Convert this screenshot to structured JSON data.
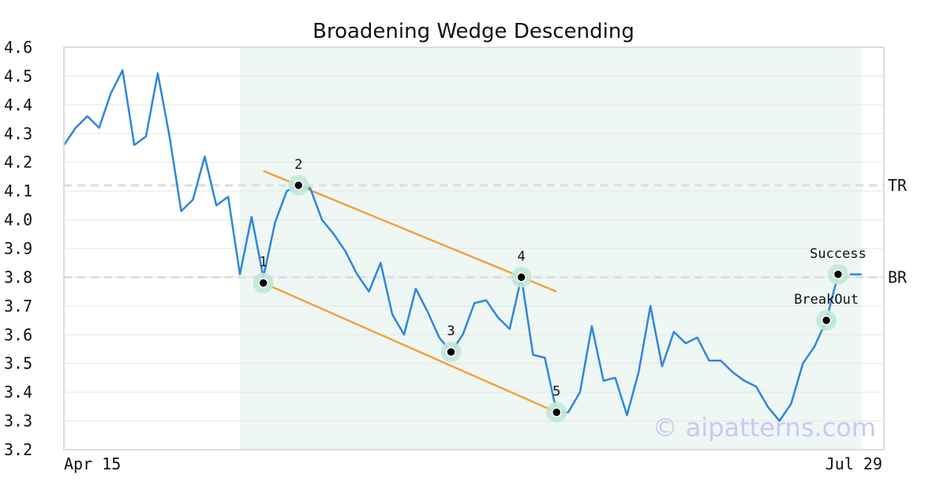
{
  "chart_data": {
    "type": "line",
    "title": "Broadening Wedge Descending",
    "xlabel": "",
    "ylabel": "",
    "x_tick_labels": [
      "Apr 15",
      "Jul 29"
    ],
    "x_range": [
      0,
      66
    ],
    "y_ticks": [
      "3.2",
      "3.3",
      "3.4",
      "3.5",
      "3.6",
      "3.7",
      "3.8",
      "3.9",
      "4.0",
      "4.1",
      "4.2",
      "4.3",
      "4.4",
      "4.5",
      "4.6"
    ],
    "ylim": [
      3.2,
      4.6
    ],
    "grid": true,
    "series": [
      {
        "color": "#2e86de",
        "x": [
          0,
          1,
          2,
          3,
          4,
          5,
          6,
          7,
          8,
          9,
          10,
          11,
          12,
          13,
          14,
          15,
          16,
          17,
          18,
          19,
          20,
          21,
          22,
          23,
          24,
          25,
          26,
          27,
          28,
          29,
          30,
          31,
          32,
          33,
          34,
          35,
          36,
          37,
          38,
          39,
          40,
          41,
          42,
          43,
          44,
          45,
          46,
          47,
          48,
          49,
          50,
          51,
          52,
          53,
          54,
          55,
          56,
          57,
          58,
          59,
          60,
          61,
          62,
          63,
          64,
          65,
          66
        ],
        "values": [
          4.26,
          4.32,
          4.36,
          4.32,
          4.44,
          4.52,
          4.26,
          4.29,
          4.51,
          4.29,
          4.03,
          4.07,
          4.22,
          4.05,
          4.08,
          3.81,
          4.01,
          3.8,
          3.99,
          4.1,
          4.12,
          4.11,
          4.0,
          3.95,
          3.89,
          3.81,
          3.75,
          3.85,
          3.67,
          3.6,
          3.76,
          3.68,
          3.59,
          3.54,
          3.6,
          3.71,
          3.72,
          3.66,
          3.62,
          3.8,
          3.53,
          3.52,
          3.33,
          3.33,
          3.4,
          3.63,
          3.44,
          3.45,
          3.32,
          3.47,
          3.7,
          3.49,
          3.61,
          3.57,
          3.59,
          3.51,
          3.51,
          3.47,
          3.44,
          3.42,
          3.35,
          3.3,
          3.36,
          3.5,
          3.56,
          3.65,
          3.81
        ]
      }
    ],
    "pattern_region": {
      "x_start": 15,
      "x_end": 68,
      "color": "#eef7f3"
    },
    "horizontal_lines": [
      {
        "label": "TR",
        "value": 4.12,
        "color": "#dddddd"
      },
      {
        "label": "BR",
        "value": 3.8,
        "color": "#dddddd"
      }
    ],
    "trend_lines": [
      {
        "name": "upper",
        "x": [
          17,
          42
        ],
        "y": [
          4.17,
          3.75
        ],
        "color": "#f4a040"
      },
      {
        "name": "lower",
        "x": [
          17,
          42
        ],
        "y": [
          3.78,
          3.33
        ],
        "color": "#f4a040"
      }
    ],
    "tail_line": {
      "x": [
        67,
        68
      ],
      "y": [
        3.81,
        3.81
      ]
    },
    "points": [
      {
        "label": "1",
        "x": 17,
        "y": 3.78,
        "label_pos": "above"
      },
      {
        "label": "2",
        "x": 20,
        "y": 4.12,
        "label_pos": "above"
      },
      {
        "label": "3",
        "x": 33,
        "y": 3.54,
        "label_pos": "above"
      },
      {
        "label": "4",
        "x": 39,
        "y": 3.8,
        "label_pos": "above"
      },
      {
        "label": "5",
        "x": 42,
        "y": 3.33,
        "label_pos": "above"
      },
      {
        "label": "BreakOut",
        "x": 65,
        "y": 3.65,
        "label_pos": "above"
      },
      {
        "label": "Success",
        "x": 66,
        "y": 3.81,
        "label_pos": "above"
      }
    ],
    "watermark": "© aipatterns.com"
  }
}
